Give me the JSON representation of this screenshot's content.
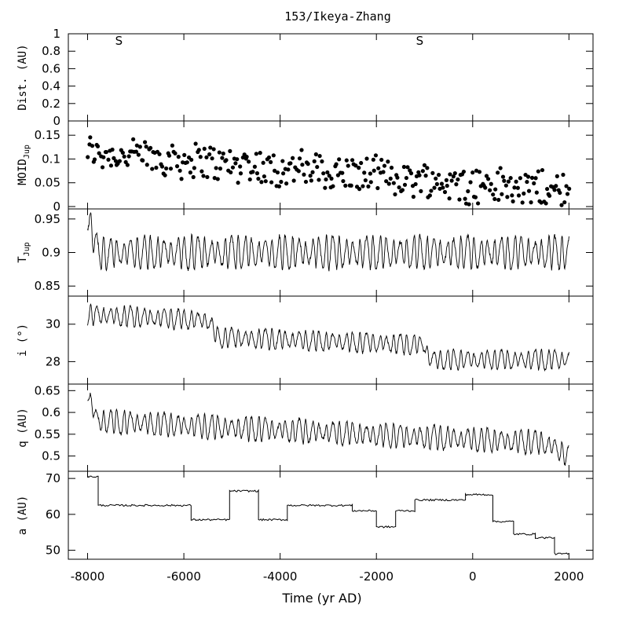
{
  "figure": {
    "title": "153/Ikeya-Zhang",
    "xlabel": "Time (yr AD)",
    "x_ticks": [
      "-8000",
      "-6000",
      "-4000",
      "-2000",
      "0",
      "2000"
    ]
  },
  "chart_data": [
    {
      "id": "dist",
      "type": "scatter",
      "ylabel": "Dist. (AU)",
      "xlim": [
        -8400,
        2500
      ],
      "ylim": [
        0,
        1
      ],
      "y_ticks": [
        0,
        0.2,
        0.4,
        0.6,
        0.8,
        1
      ],
      "y_tick_labels": [
        "0",
        "0.2",
        "0.4",
        "0.6",
        "0.8",
        "1"
      ],
      "annotations": [
        {
          "x": -7350,
          "label": "S"
        },
        {
          "x": -1100,
          "label": "S"
        }
      ]
    },
    {
      "id": "moid",
      "type": "scatter",
      "ylabel": "MOID",
      "ylabel_sub": "Jup",
      "xlim": [
        -8400,
        2500
      ],
      "ylim": [
        -0.005,
        0.18
      ],
      "y_ticks": [
        0,
        0.05,
        0.1,
        0.15
      ],
      "y_tick_labels": [
        "0",
        "0.05",
        "0.1",
        "0.15"
      ],
      "trend": {
        "x": [
          -8000,
          2000
        ],
        "y": [
          0.115,
          0.03
        ],
        "scatter": 0.035
      }
    },
    {
      "id": "tjup",
      "type": "line",
      "ylabel": "T",
      "ylabel_sub": "Jup",
      "xlim": [
        -8400,
        2500
      ],
      "ylim": [
        0.835,
        0.965
      ],
      "y_ticks": [
        0.85,
        0.9,
        0.95
      ],
      "y_tick_labels": [
        "0.85",
        "0.9",
        "0.95"
      ],
      "profile": {
        "x": [
          -8000,
          -7800,
          2000
        ],
        "y": [
          0.955,
          0.9,
          0.9
        ]
      },
      "oscillation": {
        "amplitude": 0.025,
        "period_yr": 140
      }
    },
    {
      "id": "incl",
      "type": "line",
      "ylabel": "i (°)",
      "xlim": [
        -8400,
        2500
      ],
      "ylim": [
        26.8,
        31.5
      ],
      "y_ticks": [
        28,
        30
      ],
      "y_tick_labels": [
        "28",
        "30"
      ],
      "profile": {
        "x": [
          -8000,
          -5500,
          -5300,
          -1000,
          -900,
          2000
        ],
        "y": [
          30.5,
          30.2,
          29.3,
          28.9,
          28.1,
          28.1
        ]
      },
      "oscillation": {
        "amplitude": 0.55,
        "period_yr": 140
      }
    },
    {
      "id": "q",
      "type": "line",
      "ylabel": "q (AU)",
      "xlim": [
        -8400,
        2500
      ],
      "ylim": [
        0.465,
        0.665
      ],
      "y_ticks": [
        0.5,
        0.55,
        0.6,
        0.65
      ],
      "y_tick_labels": [
        "0.5",
        "0.55",
        "0.6",
        "0.65"
      ],
      "profile": {
        "x": [
          -8000,
          -7800,
          1500,
          2000
        ],
        "y": [
          0.645,
          0.58,
          0.53,
          0.5
        ]
      },
      "oscillation": {
        "amplitude": 0.028,
        "period_yr": 140
      }
    },
    {
      "id": "a",
      "type": "line",
      "ylabel": "a (AU)",
      "xlim": [
        -8400,
        2500
      ],
      "ylim": [
        47.5,
        72
      ],
      "y_ticks": [
        50,
        60,
        70
      ],
      "y_tick_labels": [
        "50",
        "60",
        "70"
      ],
      "steps": [
        {
          "x0": -8000,
          "x1": -7780,
          "y": 70.5
        },
        {
          "x0": -7780,
          "x1": -5850,
          "y": 62.5
        },
        {
          "x0": -5850,
          "x1": -5050,
          "y": 58.5
        },
        {
          "x0": -5050,
          "x1": -4450,
          "y": 66.5
        },
        {
          "x0": -4450,
          "x1": -3850,
          "y": 58.5
        },
        {
          "x0": -3850,
          "x1": -2500,
          "y": 62.5
        },
        {
          "x0": -2500,
          "x1": -2000,
          "y": 61
        },
        {
          "x0": -2000,
          "x1": -1600,
          "y": 56.5
        },
        {
          "x0": -1600,
          "x1": -1200,
          "y": 61
        },
        {
          "x0": -1200,
          "x1": -150,
          "y": 64
        },
        {
          "x0": -150,
          "x1": 420,
          "y": 65.5
        },
        {
          "x0": 420,
          "x1": 850,
          "y": 58
        },
        {
          "x0": 850,
          "x1": 1300,
          "y": 54.5
        },
        {
          "x0": 1300,
          "x1": 1700,
          "y": 53.5
        },
        {
          "x0": 1700,
          "x1": 2000,
          "y": 49
        }
      ]
    }
  ]
}
